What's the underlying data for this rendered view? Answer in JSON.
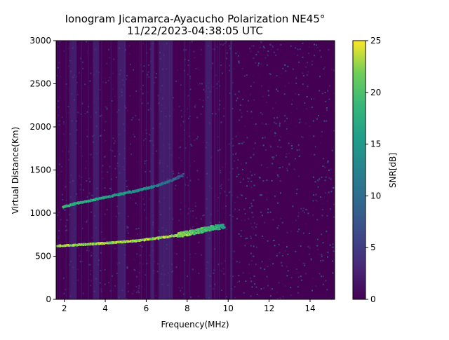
{
  "chart_data": {
    "type": "heatmap",
    "title_line1": "Ionogram Jicamarca-Ayacucho Polarization NE45°",
    "title_line2": "11/22/2023-04:38:05 UTC",
    "xlabel": "Frequency(MHz)",
    "ylabel": "Virtual Distance(Km)",
    "colorbar_label": "SNR[dB]",
    "xlim": [
      1.6,
      15.2
    ],
    "ylim": [
      0,
      3000
    ],
    "clim": [
      0,
      25
    ],
    "x_ticks": [
      2,
      4,
      6,
      8,
      10,
      12,
      14
    ],
    "y_ticks": [
      0,
      500,
      1000,
      1500,
      2000,
      2500,
      3000
    ],
    "colorbar_ticks": [
      0,
      5,
      10,
      15,
      20,
      25
    ],
    "colormap": "viridis",
    "traces": [
      {
        "points": [
          [
            1.6,
            620,
            25
          ],
          [
            2.5,
            630,
            25
          ],
          [
            3.5,
            645,
            25
          ],
          [
            4.5,
            660,
            25
          ],
          [
            5.5,
            680,
            25
          ],
          [
            6.5,
            710,
            25
          ],
          [
            7.5,
            745,
            25
          ],
          [
            8.5,
            790,
            23
          ],
          [
            9.2,
            830,
            21
          ],
          [
            9.8,
            850,
            18
          ]
        ]
      },
      {
        "points": [
          [
            1.9,
            1070,
            21
          ],
          [
            2.5,
            1110,
            20
          ],
          [
            3.5,
            1160,
            19
          ],
          [
            4.5,
            1210,
            18
          ],
          [
            5.5,
            1260,
            17
          ],
          [
            6.5,
            1320,
            15
          ],
          [
            7.2,
            1380,
            12
          ],
          [
            7.8,
            1450,
            9
          ]
        ]
      }
    ],
    "noise_bands_mhz": [
      [
        2.3,
        2.6
      ],
      [
        3.4,
        3.7
      ],
      [
        4.6,
        5.0
      ],
      [
        6.2,
        6.4
      ],
      [
        6.6,
        7.3
      ],
      [
        8.9,
        9.2
      ]
    ]
  }
}
